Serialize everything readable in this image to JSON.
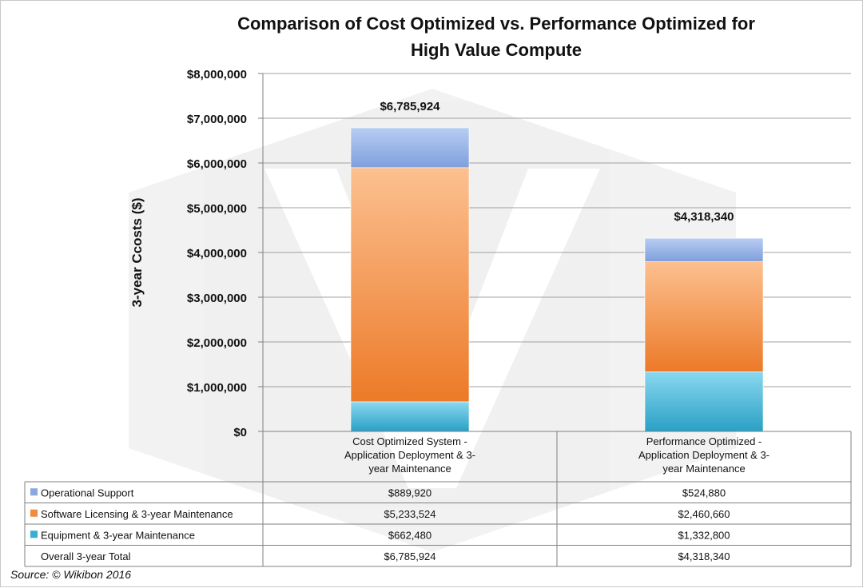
{
  "chart_data": {
    "type": "bar",
    "stacked": true,
    "title": "Comparison of Cost Optimized vs. Performance Optimized for High Value Compute",
    "title_lines": [
      "Comparison of Cost Optimized vs. Performance Optimized for",
      "High Value Compute"
    ],
    "ylabel": "3-year Ccosts ($)",
    "ylim": [
      0,
      8000000
    ],
    "yticks": [
      0,
      1000000,
      2000000,
      3000000,
      4000000,
      5000000,
      6000000,
      7000000,
      8000000
    ],
    "ytick_labels": [
      "$0",
      "$1,000,000",
      "$2,000,000",
      "$3,000,000",
      "$4,000,000",
      "$5,000,000",
      "$6,000,000",
      "$7,000,000",
      "$8,000,000"
    ],
    "grid": true,
    "categories": [
      [
        "Cost Optimized System -",
        "Application Deployment & 3-",
        "year Maintenance"
      ],
      [
        "Performance Optimized -",
        "Application Deployment & 3-",
        "year Maintenance"
      ]
    ],
    "series": [
      {
        "name": "Equipment & 3-year Maintenance",
        "values": [
          662480,
          1332800
        ],
        "labels": [
          "$662,480",
          "$1,332,800"
        ],
        "color": "#3aaed0"
      },
      {
        "name": "Software Licensing & 3-year Maintenance",
        "values": [
          5233524,
          2460660
        ],
        "labels": [
          "$5,233,524",
          "$2,460,660"
        ],
        "color": "#f08a3c"
      },
      {
        "name": "Operational Support",
        "values": [
          889920,
          524880
        ],
        "labels": [
          "$889,920",
          "$524,880"
        ],
        "color": "#8aa8e0"
      }
    ],
    "totals": {
      "name": "Overall 3-year Total",
      "values": [
        6785924,
        4318340
      ],
      "labels": [
        "$6,785,924",
        "$4,318,340"
      ]
    },
    "table_row_order": [
      "Operational Support",
      "Software Licensing & 3-year Maintenance",
      "Equipment & 3-year Maintenance"
    ]
  },
  "source": "Source:  © Wikibon 2016"
}
